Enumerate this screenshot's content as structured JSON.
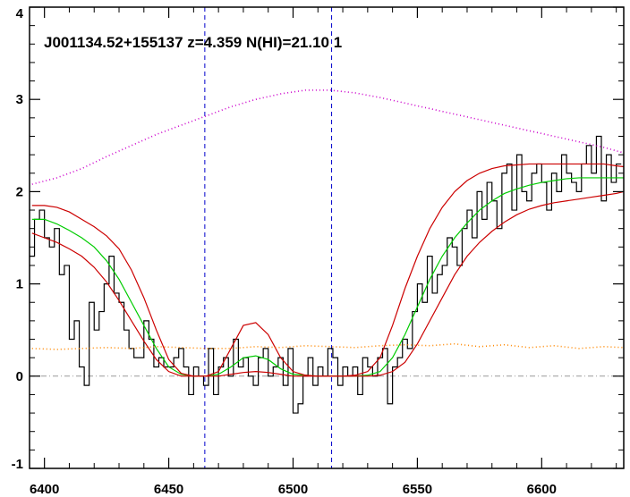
{
  "chart_data": {
    "type": "line",
    "title": "J001134.52+155137 z=4.359 N(HI)=21.10 1",
    "xlabel": "",
    "ylabel": "",
    "xlim": [
      6394,
      6633
    ],
    "ylim": [
      -1,
      4
    ],
    "x_ticks": [
      6400,
      6450,
      6500,
      6550,
      6600
    ],
    "y_ticks": [
      -1,
      0,
      1,
      2,
      3,
      4
    ],
    "x_tick_labels": [
      "6400",
      "6450",
      "6500",
      "6550",
      "6600"
    ],
    "y_tick_labels": [
      "-1",
      "0",
      "1",
      "2",
      "3",
      "4"
    ],
    "vertical_lines": [
      {
        "x": 6464.5,
        "color": "#0000cc",
        "style": "dashed"
      },
      {
        "x": 6515.5,
        "color": "#0000cc",
        "style": "dashed"
      }
    ],
    "zero_line": {
      "y": 0,
      "color": "#999999",
      "style": "dash-dot"
    },
    "grid": false,
    "series": [
      {
        "style": "steps",
        "color": "#000000",
        "x": [
          6395,
          6397,
          6399,
          6401,
          6403,
          6405,
          6407,
          6409,
          6411,
          6413,
          6415,
          6417,
          6419,
          6421,
          6423,
          6425,
          6427,
          6429,
          6431,
          6433,
          6435,
          6437,
          6439,
          6441,
          6443,
          6445,
          6447,
          6449,
          6451,
          6453,
          6455,
          6457,
          6459,
          6461,
          6463,
          6465,
          6467,
          6469,
          6471,
          6473,
          6475,
          6477,
          6479,
          6481,
          6483,
          6485,
          6487,
          6489,
          6491,
          6493,
          6495,
          6497,
          6499,
          6501,
          6503,
          6505,
          6507,
          6509,
          6511,
          6513,
          6515,
          6517,
          6519,
          6521,
          6523,
          6525,
          6527,
          6529,
          6531,
          6533,
          6535,
          6537,
          6539,
          6541,
          6543,
          6545,
          6547,
          6549,
          6551,
          6553,
          6555,
          6557,
          6559,
          6561,
          6563,
          6565,
          6567,
          6569,
          6571,
          6573,
          6575,
          6577,
          6579,
          6581,
          6583,
          6585,
          6587,
          6589,
          6591,
          6593,
          6595,
          6597,
          6599,
          6601,
          6603,
          6605,
          6607,
          6609,
          6611,
          6613,
          6615,
          6617,
          6619,
          6621,
          6623,
          6625,
          6627,
          6629,
          6631
        ],
        "y": [
          1.3,
          1.7,
          1.8,
          1.5,
          1.4,
          1.6,
          1.1,
          1.2,
          0.4,
          0.6,
          0.1,
          -0.1,
          0.8,
          0.5,
          0.7,
          1.0,
          1.3,
          0.9,
          0.8,
          0.5,
          0.3,
          0.2,
          0.2,
          0.6,
          0.4,
          0.1,
          0.2,
          0.1,
          0.1,
          0.2,
          0.3,
          0.1,
          -0.2,
          0.1,
          0.0,
          -0.1,
          0.3,
          -0.2,
          0.1,
          0.2,
          0.0,
          0.4,
          0.1,
          0.2,
          0.0,
          -0.1,
          0.2,
          0.3,
          0.0,
          0.1,
          0.2,
          -0.1,
          0.3,
          -0.4,
          -0.3,
          0.0,
          0.2,
          -0.1,
          0.1,
          0.0,
          0.3,
          0.2,
          -0.1,
          0.1,
          0.0,
          0.1,
          -0.2,
          0.2,
          0.1,
          0.0,
          0.2,
          0.3,
          -0.3,
          0.1,
          0.2,
          0.4,
          0.3,
          0.7,
          1.0,
          0.8,
          1.3,
          0.9,
          1.1,
          1.2,
          1.5,
          1.4,
          1.2,
          1.6,
          1.8,
          1.5,
          2.0,
          1.7,
          2.1,
          1.9,
          1.6,
          2.2,
          2.3,
          1.8,
          2.4,
          2.0,
          1.9,
          2.2,
          2.3,
          2.1,
          1.8,
          2.2,
          2.0,
          2.4,
          2.2,
          2.1,
          2.0,
          2.3,
          2.5,
          2.2,
          2.6,
          1.9,
          2.4,
          2.1,
          2.3
        ]
      },
      {
        "style": "line",
        "color": "#00cc00",
        "x": [
          6395,
          6400,
          6405,
          6410,
          6415,
          6420,
          6425,
          6430,
          6435,
          6440,
          6445,
          6450,
          6455,
          6460,
          6465,
          6470,
          6475,
          6480,
          6485,
          6490,
          6495,
          6500,
          6505,
          6510,
          6515,
          6520,
          6525,
          6530,
          6535,
          6540,
          6545,
          6550,
          6555,
          6560,
          6565,
          6570,
          6575,
          6580,
          6585,
          6590,
          6595,
          6600,
          6605,
          6610,
          6615,
          6620,
          6625,
          6630,
          6633
        ],
        "y": [
          1.7,
          1.7,
          1.65,
          1.58,
          1.5,
          1.4,
          1.25,
          1.05,
          0.8,
          0.55,
          0.3,
          0.1,
          0.02,
          0.0,
          0.0,
          0.02,
          0.1,
          0.2,
          0.22,
          0.18,
          0.08,
          0.02,
          0.01,
          0.0,
          0.0,
          0.0,
          0.0,
          0.01,
          0.05,
          0.2,
          0.45,
          0.75,
          1.05,
          1.3,
          1.5,
          1.66,
          1.8,
          1.9,
          1.98,
          2.03,
          2.07,
          2.1,
          2.12,
          2.14,
          2.15,
          2.15,
          2.15,
          2.15,
          2.15
        ]
      },
      {
        "style": "line",
        "color": "#cc0000",
        "x": [
          6395,
          6400,
          6405,
          6410,
          6415,
          6420,
          6425,
          6430,
          6435,
          6440,
          6445,
          6450,
          6455,
          6460,
          6465,
          6470,
          6475,
          6480,
          6485,
          6490,
          6495,
          6500,
          6505,
          6510,
          6515,
          6520,
          6525,
          6530,
          6535,
          6540,
          6545,
          6550,
          6555,
          6560,
          6565,
          6570,
          6575,
          6580,
          6585,
          6590,
          6595,
          6600,
          6605,
          6610,
          6615,
          6620,
          6625,
          6630,
          6633
        ],
        "y": [
          1.85,
          1.85,
          1.83,
          1.78,
          1.7,
          1.62,
          1.52,
          1.38,
          1.15,
          0.85,
          0.5,
          0.18,
          0.03,
          0.0,
          0.0,
          0.05,
          0.3,
          0.55,
          0.58,
          0.45,
          0.2,
          0.05,
          0.01,
          0.0,
          0.0,
          0.0,
          0.01,
          0.05,
          0.2,
          0.55,
          0.95,
          1.3,
          1.6,
          1.83,
          2.0,
          2.12,
          2.2,
          2.25,
          2.28,
          2.29,
          2.3,
          2.3,
          2.3,
          2.3,
          2.3,
          2.3,
          2.3,
          2.28,
          2.27
        ]
      },
      {
        "style": "line",
        "color": "#cc0000",
        "x": [
          6395,
          6400,
          6405,
          6410,
          6415,
          6420,
          6425,
          6430,
          6435,
          6440,
          6445,
          6450,
          6455,
          6460,
          6465,
          6470,
          6475,
          6480,
          6485,
          6490,
          6495,
          6500,
          6505,
          6510,
          6515,
          6520,
          6525,
          6530,
          6535,
          6540,
          6545,
          6550,
          6555,
          6560,
          6565,
          6570,
          6575,
          6580,
          6585,
          6590,
          6595,
          6600,
          6605,
          6610,
          6615,
          6620,
          6625,
          6630,
          6633
        ],
        "y": [
          1.55,
          1.5,
          1.45,
          1.38,
          1.3,
          1.18,
          1.02,
          0.82,
          0.6,
          0.38,
          0.18,
          0.05,
          0.0,
          0.0,
          0.0,
          0.0,
          0.02,
          0.04,
          0.05,
          0.04,
          0.02,
          0.0,
          0.0,
          0.0,
          0.0,
          0.0,
          0.0,
          0.0,
          0.01,
          0.05,
          0.15,
          0.35,
          0.6,
          0.85,
          1.1,
          1.3,
          1.45,
          1.57,
          1.67,
          1.75,
          1.81,
          1.85,
          1.88,
          1.9,
          1.92,
          1.94,
          1.96,
          1.98,
          2.0
        ]
      },
      {
        "style": "dotted",
        "color": "#cc00cc",
        "x": [
          6395,
          6405,
          6415,
          6425,
          6435,
          6445,
          6455,
          6465,
          6475,
          6485,
          6495,
          6505,
          6515,
          6525,
          6535,
          6545,
          6555,
          6565,
          6575,
          6585,
          6595,
          6605,
          6615,
          6625,
          6633
        ],
        "y": [
          2.08,
          2.15,
          2.25,
          2.38,
          2.5,
          2.62,
          2.72,
          2.82,
          2.92,
          3.0,
          3.06,
          3.1,
          3.1,
          3.07,
          3.02,
          2.96,
          2.9,
          2.84,
          2.78,
          2.72,
          2.66,
          2.6,
          2.54,
          2.48,
          2.42
        ]
      },
      {
        "style": "dotted",
        "color": "#ff8800",
        "x": [
          6395,
          6405,
          6415,
          6425,
          6435,
          6445,
          6455,
          6465,
          6475,
          6485,
          6495,
          6505,
          6515,
          6525,
          6535,
          6545,
          6555,
          6565,
          6575,
          6585,
          6595,
          6605,
          6615,
          6625,
          6633
        ],
        "y": [
          0.3,
          0.29,
          0.3,
          0.31,
          0.3,
          0.32,
          0.31,
          0.3,
          0.3,
          0.32,
          0.31,
          0.33,
          0.32,
          0.31,
          0.33,
          0.34,
          0.33,
          0.35,
          0.32,
          0.34,
          0.31,
          0.33,
          0.3,
          0.32,
          0.31
        ]
      }
    ]
  }
}
